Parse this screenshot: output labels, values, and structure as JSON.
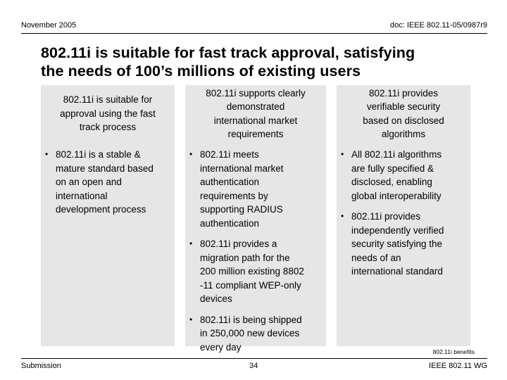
{
  "header": {
    "date": "November 2005",
    "doc": "doc: IEEE 802.11-05/0987r9"
  },
  "title": {
    "line1": "802.11i is suitable for fast track approval, satisfying",
    "line2": "the needs of 100’s millions of existing users"
  },
  "columns": [
    {
      "heading": [
        "802.11i is suitable for",
        "approval using the fast",
        "track process"
      ],
      "bullets": [
        [
          "802.11i is a stable &",
          "mature standard based",
          "on an open and",
          "international",
          "development process"
        ]
      ]
    },
    {
      "heading": [
        "802.11i supports clearly",
        "demonstrated",
        "international market",
        "requirements"
      ],
      "bullets": [
        [
          "802.11i meets",
          "international market",
          "authentication",
          "requirements by",
          "supporting RADIUS",
          "authentication"
        ],
        [
          "802.11i provides a",
          "migration path for the",
          "200 million existing 8802",
          "-11 compliant WEP-only",
          "devices"
        ],
        [
          "802.11i is being shipped",
          "in 250,000 new devices",
          "every day"
        ]
      ]
    },
    {
      "heading": [
        "802.11i provides",
        "verifiable security",
        "based on disclosed",
        "algorithms"
      ],
      "bullets": [
        [
          "All 802.11i algorithms",
          "are fully specified &",
          "disclosed, enabling",
          "global interoperability"
        ],
        [
          "802.11i provides",
          "independently verified",
          "security satisfying the",
          "needs of an",
          "international standard"
        ]
      ]
    }
  ],
  "footnote": "802.11i benefits",
  "footer": {
    "left": "Submission",
    "page": "34",
    "right": "IEEE 802.11 WG"
  }
}
